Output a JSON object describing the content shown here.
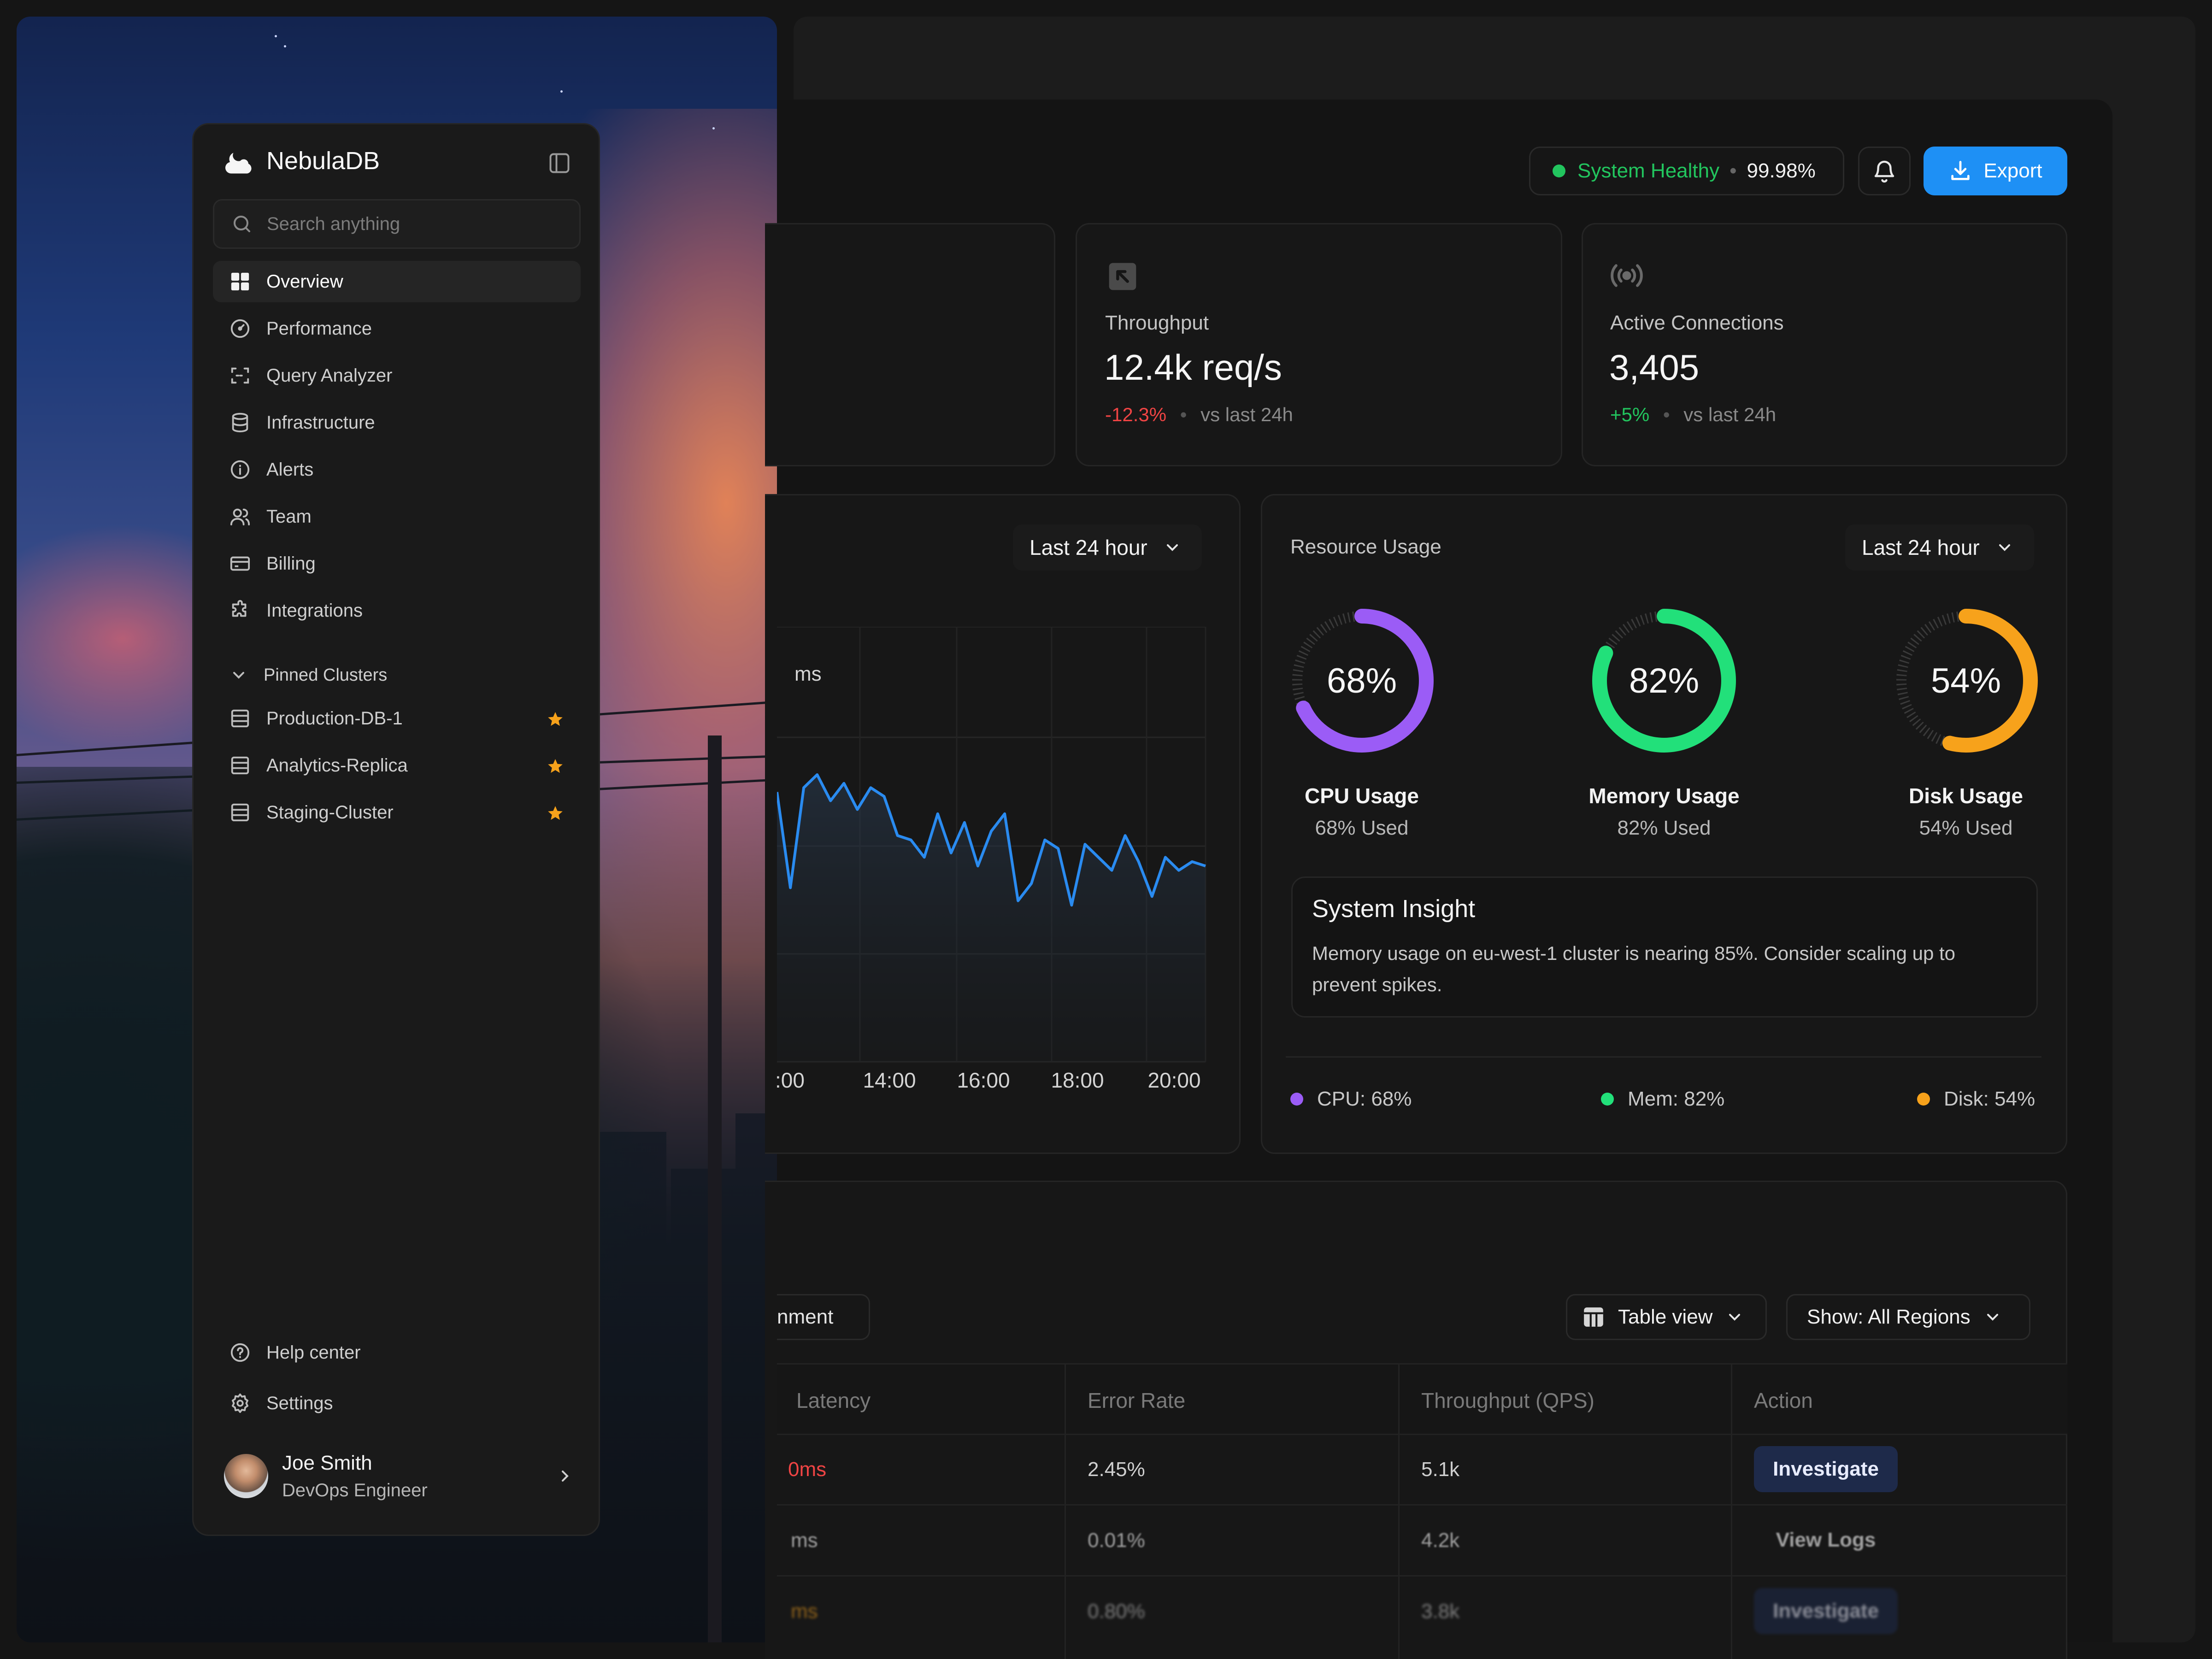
{
  "header": {
    "status_label": "System Healthy",
    "uptime": "99.98%",
    "export_label": "Export"
  },
  "stats": [
    {
      "label": "Throughput",
      "value": "12.4k req/s",
      "delta": "-12.3%",
      "delta_suffix": "vs last 24h",
      "icon": "arrow-in-icon"
    },
    {
      "label": "Active Connections",
      "value": "3,405",
      "delta": "+5%",
      "delta_suffix": "vs last 24h",
      "icon": "broadcast-icon"
    }
  ],
  "latency_chart": {
    "range_label": "Last 24 hour",
    "unit_fragment": "ms",
    "x_tick_labels": [
      ":00",
      "14:00",
      "16:00",
      "18:00",
      "20:00"
    ]
  },
  "chart_data": {
    "type": "line",
    "title": "",
    "xlabel": "",
    "ylabel": "",
    "x": [
      0,
      1,
      2,
      3,
      4,
      5,
      6,
      7,
      8,
      9,
      10,
      11,
      12,
      13,
      14,
      15,
      16,
      17,
      18,
      19,
      20,
      21,
      22,
      23,
      24,
      25,
      26,
      27,
      28,
      29,
      30,
      31,
      32
    ],
    "values": [
      62,
      40,
      63,
      66,
      60,
      64,
      58,
      63,
      61,
      52,
      51,
      47,
      57,
      48,
      55,
      45,
      53,
      57,
      37,
      41,
      51,
      49,
      36,
      50,
      47,
      44,
      52,
      46,
      38,
      47,
      44,
      46,
      45
    ],
    "ylim": [
      0,
      100
    ],
    "grid": true,
    "colors": {
      "line": "#2a8bf0"
    }
  },
  "resource": {
    "title": "Resource Usage",
    "range_label": "Last 24 hour",
    "rings": [
      {
        "pct": 68,
        "label": "68%",
        "title": "CPU Usage",
        "sub": "68% Used",
        "color": "#9b5cf6"
      },
      {
        "pct": 82,
        "label": "82%",
        "title": "Memory Usage",
        "sub": "82% Used",
        "color": "#22e07a"
      },
      {
        "pct": 54,
        "label": "54%",
        "title": "Disk Usage",
        "sub": "54% Used",
        "color": "#f7a21b"
      }
    ],
    "insight_title": "System Insight",
    "insight_body": "Memory usage on eu-west-1 cluster is nearing 85%. Consider scaling up to prevent spikes.",
    "legend": [
      "CPU: 68%",
      "Mem: 82%",
      "Disk: 54%"
    ]
  },
  "table": {
    "filter_chip": "nment",
    "view_label": "Table view",
    "region_label": "Show: All Regions",
    "headers": [
      "Latency",
      "Error Rate",
      "Throughput (QPS)",
      "Action"
    ],
    "rows": [
      {
        "latency": "0ms",
        "error": "2.45%",
        "qps": "5.1k",
        "action": "Investigate"
      },
      {
        "latency": "ms",
        "error": "0.01%",
        "qps": "4.2k",
        "action": "View Logs"
      },
      {
        "latency": "ms",
        "error": "0.80%",
        "qps": "3.8k",
        "action": "Investigate"
      }
    ]
  },
  "sidebar": {
    "brand": "NebulaDB",
    "search_placeholder": "Search anything",
    "nav": [
      "Overview",
      "Performance",
      "Query Analyzer",
      "Infrastructure",
      "Alerts",
      "Team",
      "Billing",
      "Integrations"
    ],
    "pinned_title": "Pinned Clusters",
    "pinned": [
      "Production-DB-1",
      "Analytics-Replica",
      "Staging-Cluster"
    ],
    "help": "Help center",
    "settings": "Settings",
    "user_name": "Joe Smith",
    "user_role": "DevOps Engineer"
  }
}
